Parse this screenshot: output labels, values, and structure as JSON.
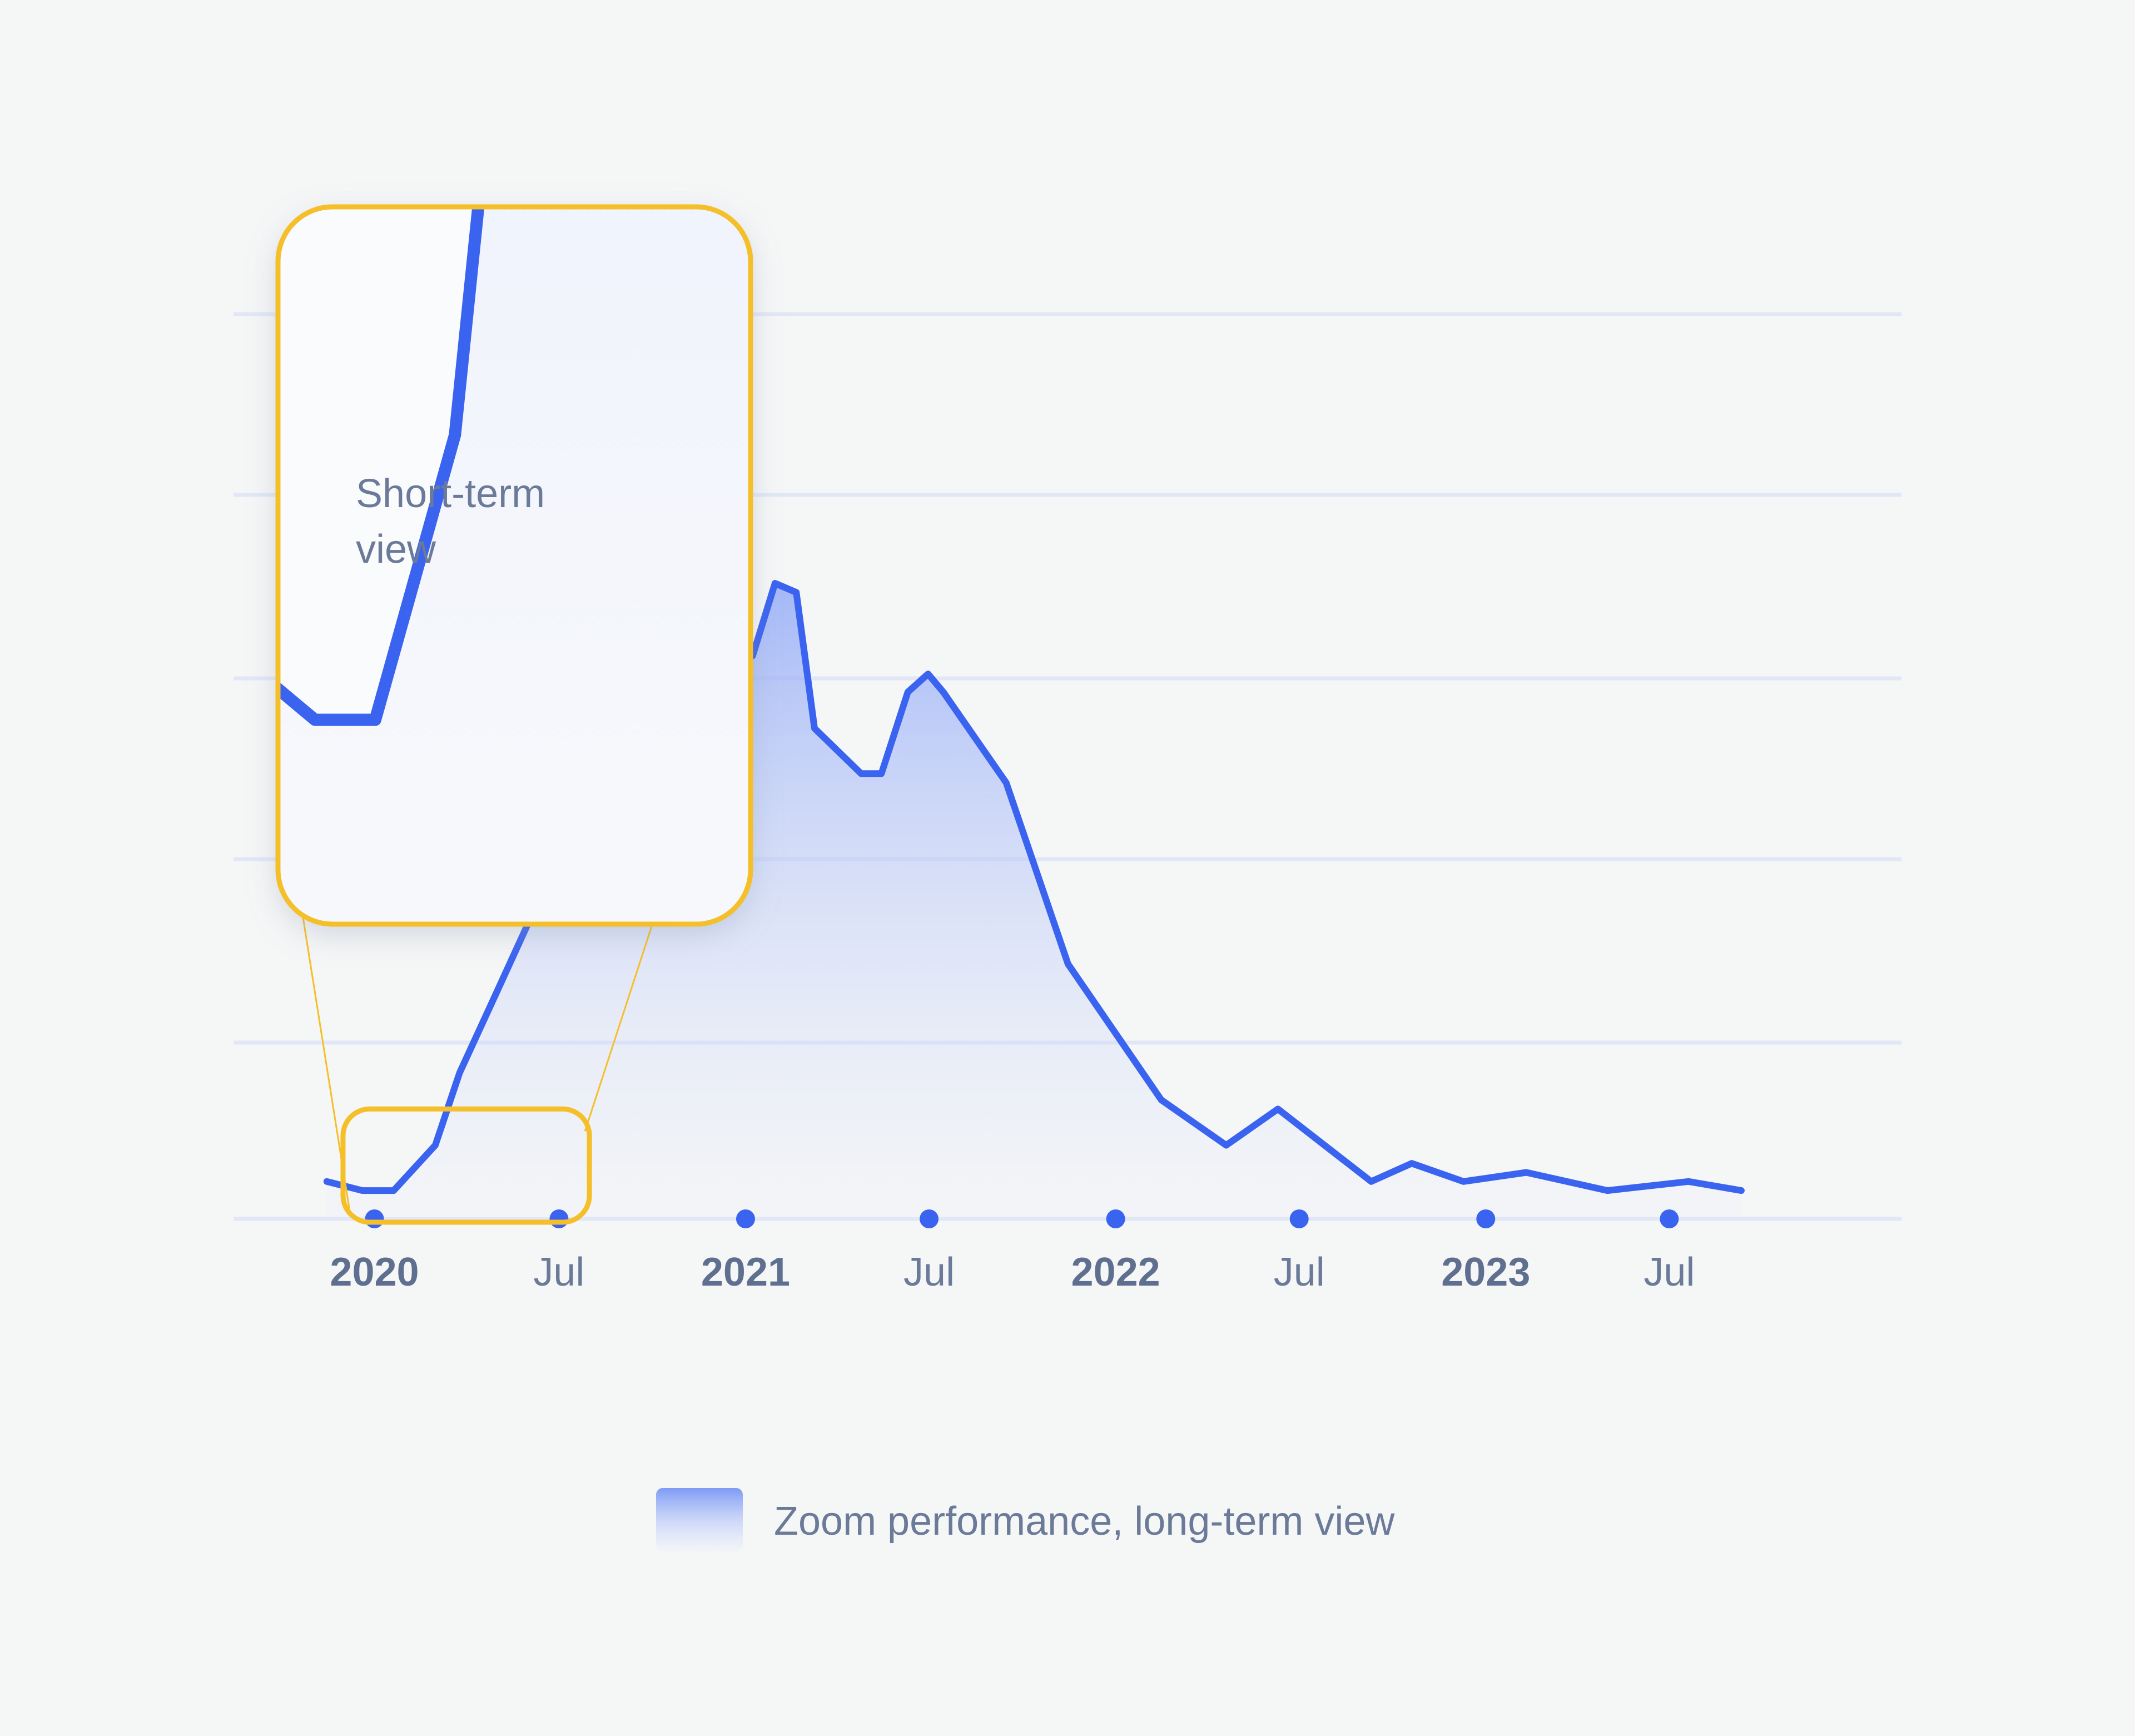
{
  "chart_data": {
    "type": "area",
    "title": "",
    "xlabel": "",
    "ylabel": "",
    "y_tick_labels": false,
    "grid": "horizontal",
    "x_ticks": [
      {
        "label": "2020",
        "date": "2020-01-01",
        "major": true
      },
      {
        "label": "Jul",
        "date": "2020-07-01",
        "major": false
      },
      {
        "label": "2021",
        "date": "2021-01-01",
        "major": true
      },
      {
        "label": "Jul",
        "date": "2021-07-01",
        "major": false
      },
      {
        "label": "2022",
        "date": "2022-01-01",
        "major": true
      },
      {
        "label": "Jul",
        "date": "2022-07-01",
        "major": false
      },
      {
        "label": "2023",
        "date": "2023-01-01",
        "major": true
      },
      {
        "label": "Jul",
        "date": "2023-07-01",
        "major": false
      }
    ],
    "xlim": [
      "2019-08-15",
      "2024-02-15"
    ],
    "ylim": [
      0,
      100
    ],
    "series": [
      {
        "name": "Zoom performance, long-term view",
        "color": "#3a63f0",
        "points": [
          {
            "x": "2019-11-15",
            "y": 4
          },
          {
            "x": "2019-12-20",
            "y": 3
          },
          {
            "x": "2020-01-20",
            "y": 3
          },
          {
            "x": "2020-03-01",
            "y": 8
          },
          {
            "x": "2020-03-25",
            "y": 16
          },
          {
            "x": "2020-05-01",
            "y": 25
          },
          {
            "x": "2020-06-15",
            "y": 36
          },
          {
            "x": "2020-07-15",
            "y": 47
          },
          {
            "x": "2020-08-05",
            "y": 47
          },
          {
            "x": "2020-08-20",
            "y": 46
          },
          {
            "x": "2020-09-01",
            "y": 47
          },
          {
            "x": "2020-09-15",
            "y": 59
          },
          {
            "x": "2020-10-08",
            "y": 80
          },
          {
            "x": "2020-10-25",
            "y": 86
          },
          {
            "x": "2020-11-10",
            "y": 86
          },
          {
            "x": "2020-11-22",
            "y": 73
          },
          {
            "x": "2020-12-05",
            "y": 73
          },
          {
            "x": "2020-12-20",
            "y": 62
          },
          {
            "x": "2021-01-08",
            "y": 62
          },
          {
            "x": "2021-01-30",
            "y": 70
          },
          {
            "x": "2021-02-20",
            "y": 69
          },
          {
            "x": "2021-03-10",
            "y": 54
          },
          {
            "x": "2021-04-25",
            "y": 49
          },
          {
            "x": "2021-05-15",
            "y": 49
          },
          {
            "x": "2021-06-10",
            "y": 58
          },
          {
            "x": "2021-06-30",
            "y": 60
          },
          {
            "x": "2021-07-15",
            "y": 58
          },
          {
            "x": "2021-09-15",
            "y": 48
          },
          {
            "x": "2021-11-15",
            "y": 28
          },
          {
            "x": "2022-02-15",
            "y": 13
          },
          {
            "x": "2022-04-20",
            "y": 8
          },
          {
            "x": "2022-06-10",
            "y": 12
          },
          {
            "x": "2022-09-10",
            "y": 4
          },
          {
            "x": "2022-10-20",
            "y": 6
          },
          {
            "x": "2022-12-10",
            "y": 4
          },
          {
            "x": "2023-02-10",
            "y": 5
          },
          {
            "x": "2023-05-01",
            "y": 3
          },
          {
            "x": "2023-07-20",
            "y": 4
          },
          {
            "x": "2023-09-10",
            "y": 3
          }
        ]
      }
    ],
    "zoom": {
      "label": "Short-term view",
      "label_lines": [
        "Short-term",
        "view"
      ],
      "x_range": [
        "2019-12-01",
        "2020-07-31"
      ],
      "y_range": [
        0,
        12
      ],
      "color": "#f5bf2a"
    },
    "legend": {
      "placement": "bottom-center",
      "entries": [
        "Zoom performance, long-term view"
      ]
    }
  }
}
